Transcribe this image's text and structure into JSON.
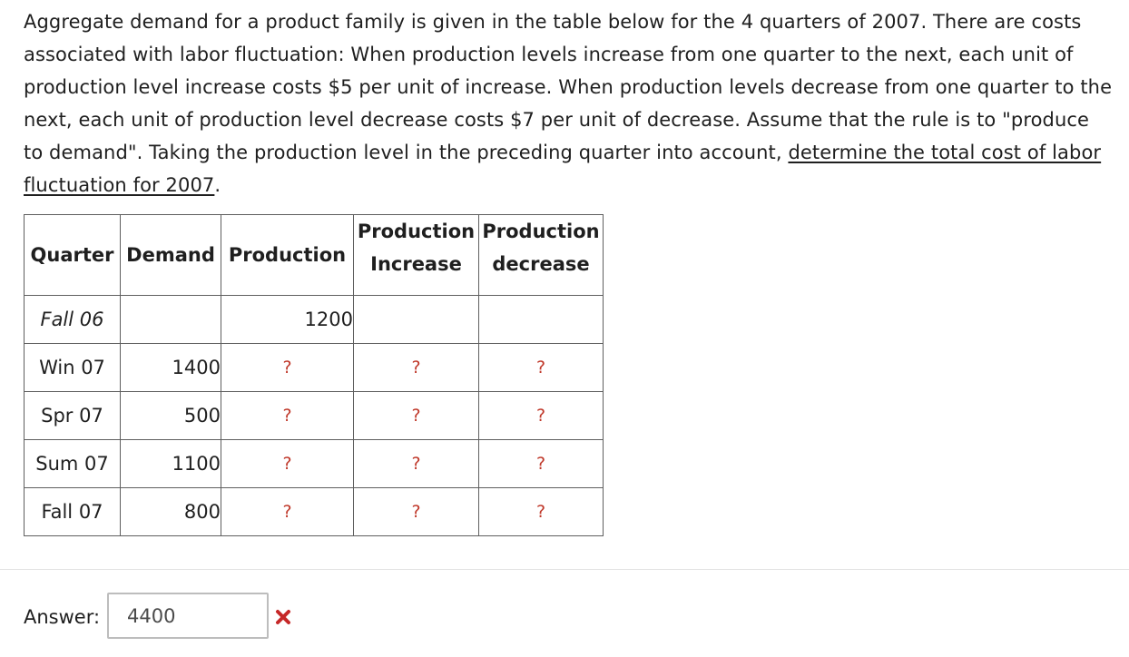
{
  "question": {
    "text_main": "Aggregate demand for a product family is given in the table below for the 4 quarters of 2007.  There are costs associated with labor fluctuation:  When production levels increase from one quarter to the next, each unit of production level increase costs $5 per unit of increase.  When production levels decrease from one quarter to the next, each unit of production level decrease costs $7 per unit of decrease.  Assume that the rule is to \"produce to demand\".  Taking the production level in the preceding quarter into account, ",
    "text_underlined": "determine the total cost of labor fluctuation for 2007",
    "text_end": "."
  },
  "table": {
    "headers": {
      "quarter": "Quarter",
      "demand": "Demand",
      "production": "Production",
      "increase_line1": "Production",
      "increase_line2": "Increase",
      "decrease_line1": "Production",
      "decrease_line2": "decrease"
    },
    "rows": [
      {
        "quarter": "Fall 06",
        "demand": "",
        "production": "1200",
        "increase": "",
        "decrease": ""
      },
      {
        "quarter": "Win 07",
        "demand": "1400",
        "production": "?",
        "increase": "?",
        "decrease": "?"
      },
      {
        "quarter": "Spr 07",
        "demand": "500",
        "production": "?",
        "increase": "?",
        "decrease": "?"
      },
      {
        "quarter": "Sum 07",
        "demand": "1100",
        "production": "?",
        "increase": "?",
        "decrease": "?"
      },
      {
        "quarter": "Fall 07",
        "demand": "800",
        "production": "?",
        "increase": "?",
        "decrease": "?"
      }
    ]
  },
  "answer": {
    "label": "Answer:",
    "value": "4400",
    "status_icon": "cross-icon",
    "status_color": "#c62828"
  }
}
